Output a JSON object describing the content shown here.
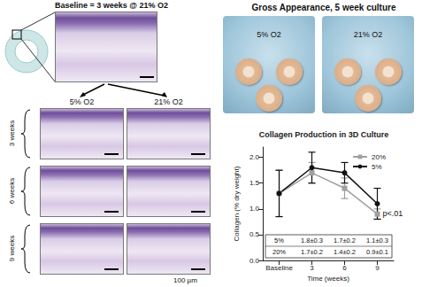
{
  "histology": {
    "title": "Baseline = 3 weeks @ 21% O2",
    "columns": [
      "5% O2",
      "21% O2"
    ],
    "rows": [
      "3 weeks",
      "6 weeks",
      "9 weeks"
    ],
    "scale_bar": "100 µm"
  },
  "gross": {
    "title": "Gross Appearance, 5 week culture",
    "labels": [
      "5% O2",
      "21% O2"
    ]
  },
  "chart_data": {
    "type": "line",
    "title": "Collagen Production in 3D Culture",
    "x_label": "Time (weeks)",
    "y_label": "Collagen (% dry weight)",
    "categories": [
      "Baseline",
      "3",
      "6",
      "9"
    ],
    "series": [
      {
        "name": "20%",
        "color": "#a0a0a0",
        "marker": "square",
        "values": [
          1.3,
          1.7,
          1.4,
          0.9
        ],
        "errors": [
          0.45,
          0.2,
          0.2,
          0.1
        ]
      },
      {
        "name": "5%",
        "color": "#111111",
        "marker": "circle",
        "values": [
          1.3,
          1.8,
          1.7,
          1.1
        ],
        "errors": [
          0.45,
          0.3,
          0.2,
          0.3
        ]
      }
    ],
    "ylim": [
      0,
      2.2
    ],
    "yticks": [
      {
        "value": 0,
        "label": "0.0"
      },
      {
        "value": 0.5,
        "label": "0.5"
      },
      {
        "value": 1,
        "label": "1.0"
      },
      {
        "value": 1.5,
        "label": "1.5"
      },
      {
        "value": 2,
        "label": "2.0"
      }
    ],
    "grid": false,
    "legend": "upper right",
    "annotation": "p<.01",
    "table": {
      "rows": [
        [
          "5%",
          "1.8±0.3",
          "1.7±0.2",
          "1.1±0.3"
        ],
        [
          "20%",
          "1.7±0.2",
          "1.4±0.2",
          "0.9±0.1"
        ]
      ]
    }
  }
}
